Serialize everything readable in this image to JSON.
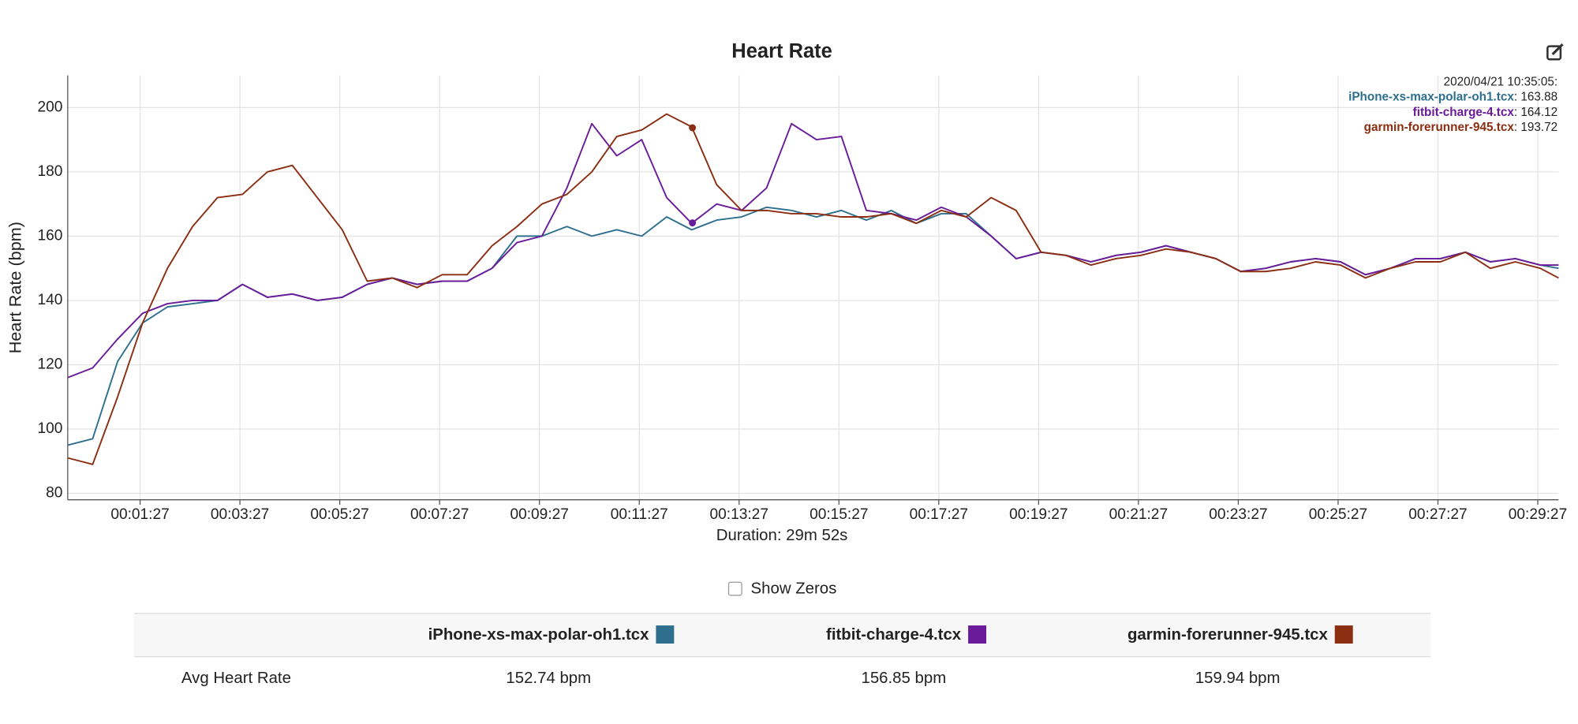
{
  "chart_data": {
    "type": "line",
    "title": "Heart Rate",
    "xlabel": "Duration: 29m 52s",
    "ylabel": "Heart Rate (bpm)",
    "x": [
      0,
      30,
      60,
      90,
      120,
      150,
      180,
      210,
      240,
      270,
      300,
      330,
      360,
      390,
      420,
      450,
      480,
      510,
      540,
      570,
      600,
      630,
      660,
      690,
      720,
      750,
      780,
      810,
      840,
      870,
      900,
      930,
      960,
      990,
      1020,
      1050,
      1080,
      1110,
      1140,
      1170,
      1200,
      1230,
      1260,
      1290,
      1320,
      1350,
      1380,
      1410,
      1440,
      1470,
      1500,
      1530,
      1560,
      1590,
      1620,
      1650,
      1680,
      1710,
      1740,
      1770,
      1792
    ],
    "series": [
      {
        "name": "iPhone-xs-max-polar-oh1.tcx",
        "color": "#2e6f8e",
        "values": [
          95,
          97,
          121,
          133,
          138,
          139,
          140,
          145,
          141,
          142,
          140,
          141,
          145,
          147,
          145,
          146,
          146,
          150,
          160,
          160,
          163,
          160,
          162,
          160,
          166,
          162,
          165,
          166,
          169,
          168,
          166,
          168,
          165,
          168,
          164,
          167,
          167,
          160,
          153,
          155,
          154,
          152,
          154,
          155,
          157,
          155,
          153,
          149,
          150,
          152,
          153,
          152,
          148,
          150,
          153,
          153,
          155,
          152,
          153,
          151,
          150
        ]
      },
      {
        "name": "fitbit-charge-4.tcx",
        "color": "#6a1b9a",
        "values": [
          116,
          119,
          128,
          136,
          139,
          140,
          140,
          145,
          141,
          142,
          140,
          141,
          145,
          147,
          145,
          146,
          146,
          150,
          158,
          160,
          175,
          195,
          185,
          190,
          172,
          164,
          170,
          168,
          175,
          195,
          190,
          191,
          168,
          167,
          165,
          169,
          166,
          160,
          153,
          155,
          154,
          152,
          154,
          155,
          157,
          155,
          153,
          149,
          150,
          152,
          153,
          152,
          148,
          150,
          153,
          153,
          155,
          152,
          153,
          151,
          151
        ]
      },
      {
        "name": "garmin-forerunner-945.tcx",
        "color": "#8b2e12",
        "values": [
          91,
          89,
          110,
          133,
          150,
          163,
          172,
          173,
          180,
          182,
          172,
          162,
          146,
          147,
          144,
          148,
          148,
          157,
          163,
          170,
          173,
          180,
          191,
          193,
          198,
          194,
          176,
          168,
          168,
          167,
          167,
          166,
          166,
          167,
          164,
          168,
          166,
          172,
          168,
          155,
          154,
          151,
          153,
          154,
          156,
          155,
          153,
          149,
          149,
          150,
          152,
          151,
          147,
          150,
          152,
          152,
          155,
          150,
          152,
          150,
          147
        ]
      }
    ],
    "xlim": [
      0,
      1792
    ],
    "xticks": [
      {
        "value": 87,
        "label": "00:01:27"
      },
      {
        "value": 207,
        "label": "00:03:27"
      },
      {
        "value": 327,
        "label": "00:05:27"
      },
      {
        "value": 447,
        "label": "00:07:27"
      },
      {
        "value": 567,
        "label": "00:09:27"
      },
      {
        "value": 687,
        "label": "00:11:27"
      },
      {
        "value": 807,
        "label": "00:13:27"
      },
      {
        "value": 927,
        "label": "00:15:27"
      },
      {
        "value": 1047,
        "label": "00:17:27"
      },
      {
        "value": 1167,
        "label": "00:19:27"
      },
      {
        "value": 1287,
        "label": "00:21:27"
      },
      {
        "value": 1407,
        "label": "00:23:27"
      },
      {
        "value": 1527,
        "label": "00:25:27"
      },
      {
        "value": 1647,
        "label": "00:27:27"
      },
      {
        "value": 1767,
        "label": "00:29:27"
      }
    ],
    "ylim": [
      78,
      210
    ],
    "yticks": [
      80,
      100,
      120,
      140,
      160,
      180,
      200
    ],
    "grid": true,
    "tooltip": {
      "time": "2020/04/21 10:35:05:",
      "values": [
        163.88,
        164.12,
        193.72
      ]
    }
  },
  "controls": {
    "show_zeros": "Show Zeros"
  },
  "table": {
    "row_label": "Avg Heart Rate",
    "cells": [
      "152.74 bpm",
      "156.85 bpm",
      "159.94 bpm"
    ]
  }
}
